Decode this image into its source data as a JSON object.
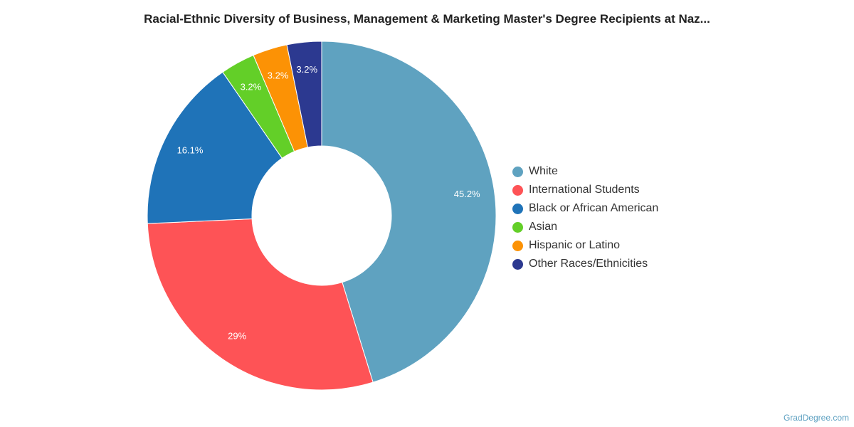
{
  "chart_data": {
    "type": "pie",
    "title": "Racial-Ethnic Diversity of Business, Management & Marketing Master's Degree Recipients at Naz...",
    "categories": [
      "White",
      "International Students",
      "Black or African American",
      "Asian",
      "Hispanic or Latino",
      "Other Races/Ethnicities"
    ],
    "values": [
      45.2,
      29,
      16.1,
      3.2,
      3.2,
      3.2
    ],
    "data_labels": [
      "45.2%",
      "29%",
      "16.1%",
      "3.2%",
      "3.2%",
      "3.2%"
    ],
    "colors": [
      "#5fa2c0",
      "#fe5356",
      "#1f73b8",
      "#63cf28",
      "#fc9205",
      "#2c3990"
    ],
    "donut": true,
    "legend_position": "right"
  },
  "credit": "GradDegree.com"
}
